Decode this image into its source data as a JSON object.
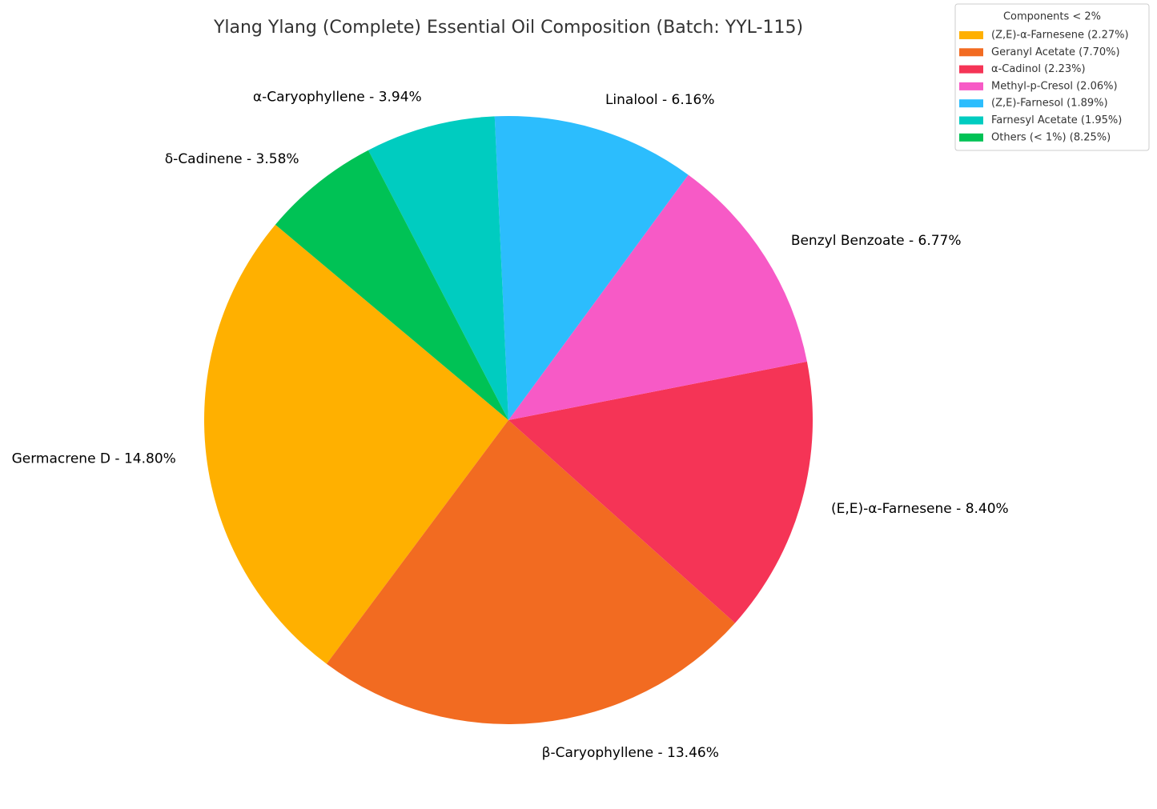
{
  "chart_data": {
    "type": "pie",
    "title": "Ylang Ylang (Complete) Essential Oil Composition (Batch: YYL-115)",
    "values": [
      14.8,
      13.46,
      8.4,
      6.77,
      6.16,
      3.94,
      3.58
    ],
    "value_labels": [
      "Germacrene D - 14.80%",
      "β-Caryophyllene - 13.46%",
      "(E,E)-α-Farnesene - 8.40%",
      "Benzyl Benzoate - 6.77%",
      "Linalool - 6.16%",
      "α-Caryophyllene - 3.94%",
      "δ-Cadinene - 3.58%"
    ],
    "colors": [
      "#FFB000",
      "#F26B21",
      "#F53456",
      "#F75AC6",
      "#2CBDFD",
      "#00CCC0",
      "#00C255"
    ],
    "legend": {
      "title": "Components < 2%",
      "entries": [
        "(Z,E)-α-Farnesene (2.27%)",
        "Geranyl Acetate (7.70%)",
        "α-Cadinol (2.23%)",
        "Methyl-p-Cresol (2.06%)",
        "(Z,E)-Farnesol (1.89%)",
        "Farnesyl Acetate (1.95%)",
        "Others (< 1%) (8.25%)"
      ],
      "colors": [
        "#FFB000",
        "#F26B21",
        "#F53456",
        "#F75AC6",
        "#2CBDFD",
        "#00CCC0",
        "#00C255"
      ],
      "position": "upper right"
    }
  }
}
